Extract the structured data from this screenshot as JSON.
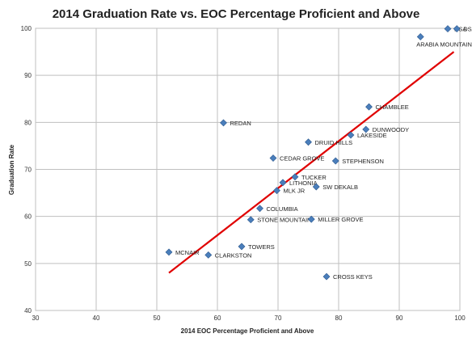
{
  "chart_data": {
    "type": "scatter",
    "title": "2014 Graduation Rate vs. EOC Percentage Proficient and Above",
    "xlabel": "2014 EOC Percentage Proficient and Above",
    "ylabel": "Graduation Rate",
    "xlim": [
      30,
      100
    ],
    "ylim": [
      40,
      100
    ],
    "xticks": [
      30,
      40,
      50,
      60,
      70,
      80,
      90,
      100
    ],
    "yticks": [
      40,
      50,
      60,
      70,
      80,
      90,
      100
    ],
    "grid": true,
    "legend": "none",
    "colors": {
      "point": "#4a7ebb",
      "trendline": "#e00000"
    },
    "trendline": {
      "x": [
        52,
        99
      ],
      "y": [
        48,
        95
      ]
    },
    "points": [
      {
        "label": "DSA",
        "x": 98,
        "y": 99.9
      },
      {
        "label": "DSA",
        "x": 99.5,
        "y": 99.9
      },
      {
        "label": "ARABIA MOUNTAIN",
        "x": 93.5,
        "y": 98.2
      },
      {
        "label": "CHAMBLEE",
        "x": 85,
        "y": 83.3
      },
      {
        "label": "REDAN",
        "x": 61,
        "y": 79.9
      },
      {
        "label": "DUNWOODY",
        "x": 84.5,
        "y": 78.5
      },
      {
        "label": "LAKESIDE",
        "x": 82,
        "y": 77.3
      },
      {
        "label": "DRUID HILLS",
        "x": 75,
        "y": 75.8
      },
      {
        "label": "CEDAR GROVE",
        "x": 69.2,
        "y": 72.4
      },
      {
        "label": "STEPHENSON",
        "x": 79.5,
        "y": 71.8
      },
      {
        "label": "TUCKER",
        "x": 72.8,
        "y": 68.4
      },
      {
        "label": "LITHONIA",
        "x": 70.8,
        "y": 67.2
      },
      {
        "label": "SW DEKALB",
        "x": 76.3,
        "y": 66.3
      },
      {
        "label": "MLK JR",
        "x": 69.8,
        "y": 65.5
      },
      {
        "label": "COLUMBIA",
        "x": 67,
        "y": 61.7
      },
      {
        "label": "STONE MOUNTAIN",
        "x": 65.5,
        "y": 59.3
      },
      {
        "label": "MILLER GROVE",
        "x": 75.5,
        "y": 59.4
      },
      {
        "label": "TOWERS",
        "x": 64,
        "y": 53.6
      },
      {
        "label": "MCNAIR",
        "x": 52,
        "y": 52.4
      },
      {
        "label": "CLARKSTON",
        "x": 58.5,
        "y": 51.8
      },
      {
        "label": "CROSS KEYS",
        "x": 78,
        "y": 47.2
      }
    ]
  }
}
